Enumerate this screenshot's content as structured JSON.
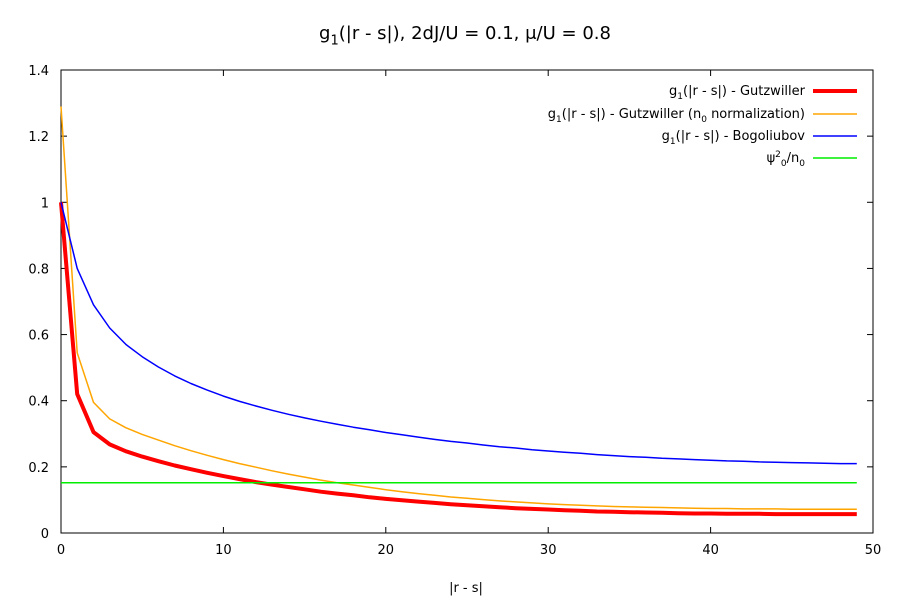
{
  "chart_data": {
    "type": "line",
    "title": {
      "base": "g",
      "sub": "1",
      "rest": "(|r - s|), 2dJ/U = 0.1, μ/U = 0.8"
    },
    "xlabel": "|r - s|",
    "ylabel": "",
    "xlim": [
      0,
      50
    ],
    "ylim": [
      0,
      1.4
    ],
    "xticks": [
      0,
      10,
      20,
      30,
      40,
      50
    ],
    "yticks": [
      0,
      0.2,
      0.4,
      0.6,
      0.8,
      1,
      1.2,
      1.4
    ],
    "xtick_labels": [
      "0",
      "10",
      "20",
      "30",
      "40",
      "50"
    ],
    "ytick_labels": [
      "0",
      "0.2",
      "0.4",
      "0.6",
      "0.8",
      "1",
      "1.2",
      "1.4"
    ],
    "grid": false,
    "legend_position": "top-right",
    "series": [
      {
        "name": "g1(|r - s|) - Gutzwiller",
        "legend": [
          {
            "t": "g"
          },
          {
            "t": "1",
            "sub": true
          },
          {
            "t": "(|r - s|) - Gutzwiller"
          }
        ],
        "color": "#ff0000",
        "width": 4,
        "x": [
          0,
          1,
          2,
          3,
          4,
          5,
          6,
          7,
          8,
          9,
          10,
          11,
          12,
          13,
          14,
          15,
          16,
          17,
          18,
          19,
          20,
          21,
          22,
          23,
          24,
          25,
          26,
          27,
          28,
          29,
          30,
          31,
          32,
          33,
          34,
          35,
          36,
          37,
          38,
          39,
          40,
          41,
          42,
          43,
          44,
          45,
          46,
          47,
          48,
          49
        ],
        "y": [
          1.0,
          0.42,
          0.305,
          0.268,
          0.247,
          0.231,
          0.217,
          0.204,
          0.193,
          0.182,
          0.172,
          0.163,
          0.154,
          0.146,
          0.139,
          0.132,
          0.125,
          0.119,
          0.114,
          0.108,
          0.103,
          0.099,
          0.095,
          0.091,
          0.087,
          0.084,
          0.081,
          0.078,
          0.075,
          0.073,
          0.071,
          0.069,
          0.067,
          0.065,
          0.064,
          0.063,
          0.062,
          0.061,
          0.06,
          0.059,
          0.059,
          0.058,
          0.058,
          0.058,
          0.057,
          0.057,
          0.057,
          0.057,
          0.057,
          0.057
        ]
      },
      {
        "name": "g1(|r - s|) - Gutzwiller (n0 normalization)",
        "legend": [
          {
            "t": "g"
          },
          {
            "t": "1",
            "sub": true
          },
          {
            "t": "(|r - s|) - Gutzwiller (n"
          },
          {
            "t": "0",
            "sub": true
          },
          {
            "t": " normalization)"
          }
        ],
        "color": "#ffa500",
        "width": 1.5,
        "x": [
          0,
          1,
          2,
          3,
          4,
          5,
          6,
          7,
          8,
          9,
          10,
          11,
          12,
          13,
          14,
          15,
          16,
          17,
          18,
          19,
          20,
          21,
          22,
          23,
          24,
          25,
          26,
          27,
          28,
          29,
          30,
          31,
          32,
          33,
          34,
          35,
          36,
          37,
          38,
          39,
          40,
          41,
          42,
          43,
          44,
          45,
          46,
          47,
          48,
          49
        ],
        "y": [
          1.29,
          0.545,
          0.395,
          0.345,
          0.318,
          0.298,
          0.281,
          0.264,
          0.249,
          0.235,
          0.222,
          0.21,
          0.199,
          0.188,
          0.178,
          0.169,
          0.16,
          0.152,
          0.145,
          0.138,
          0.131,
          0.125,
          0.119,
          0.114,
          0.109,
          0.105,
          0.101,
          0.097,
          0.094,
          0.091,
          0.088,
          0.086,
          0.084,
          0.082,
          0.08,
          0.079,
          0.078,
          0.077,
          0.076,
          0.075,
          0.074,
          0.074,
          0.073,
          0.073,
          0.073,
          0.072,
          0.072,
          0.072,
          0.072,
          0.072
        ]
      },
      {
        "name": "g1(|r - s|) - Bogoliubov",
        "legend": [
          {
            "t": "g"
          },
          {
            "t": "1",
            "sub": true
          },
          {
            "t": "(|r - s|) - Bogoliubov"
          }
        ],
        "color": "#0000ff",
        "width": 1.5,
        "x": [
          0,
          1,
          2,
          3,
          4,
          5,
          6,
          7,
          8,
          9,
          10,
          11,
          12,
          13,
          14,
          15,
          16,
          17,
          18,
          19,
          20,
          21,
          22,
          23,
          24,
          25,
          26,
          27,
          28,
          29,
          30,
          31,
          32,
          33,
          34,
          35,
          36,
          37,
          38,
          39,
          40,
          41,
          42,
          43,
          44,
          45,
          46,
          47,
          48,
          49
        ],
        "y": [
          1.0,
          0.8,
          0.69,
          0.62,
          0.57,
          0.533,
          0.502,
          0.475,
          0.452,
          0.432,
          0.414,
          0.398,
          0.384,
          0.371,
          0.359,
          0.348,
          0.338,
          0.329,
          0.32,
          0.312,
          0.304,
          0.297,
          0.29,
          0.283,
          0.277,
          0.272,
          0.266,
          0.261,
          0.257,
          0.252,
          0.248,
          0.244,
          0.241,
          0.237,
          0.234,
          0.231,
          0.229,
          0.226,
          0.224,
          0.222,
          0.22,
          0.218,
          0.217,
          0.215,
          0.214,
          0.213,
          0.212,
          0.211,
          0.21,
          0.21
        ]
      },
      {
        "name": "ψ2_0/n0",
        "legend": [
          {
            "t": "ψ"
          },
          {
            "t": "2",
            "sup": true
          },
          {
            "t": "0",
            "sub": true
          },
          {
            "t": "/n"
          },
          {
            "t": "0",
            "sub": true
          }
        ],
        "color": "#00ee00",
        "width": 1.5,
        "x": [
          0,
          49
        ],
        "y": [
          0.152,
          0.152
        ]
      }
    ]
  }
}
